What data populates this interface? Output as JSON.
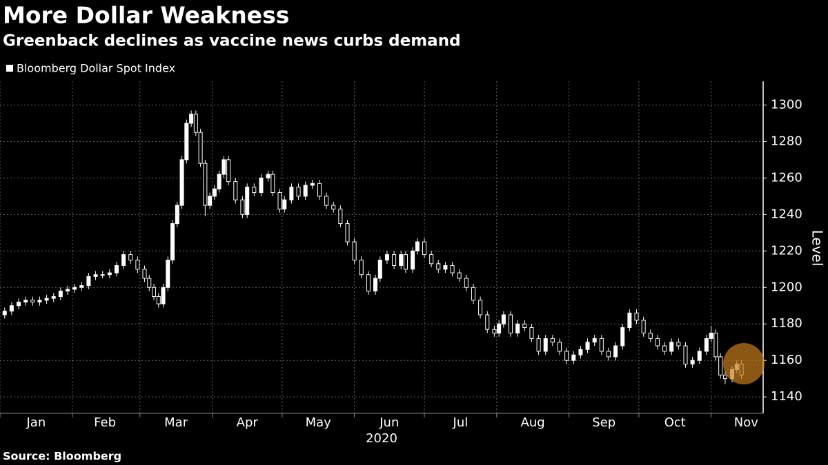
{
  "chart_data": {
    "type": "candlestick",
    "title": "More Dollar Weakness",
    "subtitle": "Greenback declines as vaccine news curbs demand",
    "source": "Source: Bloomberg",
    "x_label": "2020",
    "y_label": "Level",
    "series": [
      {
        "name": "Bloomberg Dollar Spot Index",
        "color": "#ffffff",
        "x": [
          2,
          5,
          8,
          11,
          14,
          17,
          20,
          23,
          26,
          29,
          32,
          35,
          38,
          41,
          44,
          47,
          50,
          53,
          56,
          59,
          62,
          64,
          66,
          68,
          70,
          72,
          74,
          76,
          78,
          80,
          82,
          84,
          86,
          88,
          90,
          92,
          94,
          96,
          98,
          101,
          104,
          106,
          109,
          112,
          115,
          117,
          120,
          122,
          125,
          128,
          131,
          134,
          137,
          140,
          143,
          146,
          149,
          152,
          155,
          158,
          161,
          163,
          166,
          169,
          172,
          174,
          177,
          179,
          182,
          185,
          188,
          191,
          194,
          197,
          200,
          203,
          206,
          209,
          212,
          214,
          216,
          219,
          222,
          225,
          228,
          231,
          234,
          237,
          240,
          243,
          246,
          249,
          252,
          255,
          258,
          261,
          264,
          267,
          270,
          273,
          276,
          279,
          282,
          285,
          288,
          291,
          294,
          297,
          300,
          303,
          305,
          307,
          309,
          311,
          314,
          316,
          318
        ],
        "open": [
          1185,
          1187,
          1190,
          1192,
          1193,
          1192,
          1193,
          1194,
          1195,
          1198,
          1199,
          1200,
          1201,
          1206,
          1207,
          1207,
          1208,
          1212,
          1218,
          1215,
          1210,
          1205,
          1200,
          1195,
          1191,
          1200,
          1215,
          1235,
          1245,
          1270,
          1290,
          1295,
          1285,
          1268,
          1245,
          1250,
          1254,
          1262,
          1270,
          1258,
          1248,
          1240,
          1255,
          1252,
          1260,
          1262,
          1252,
          1243,
          1248,
          1255,
          1250,
          1256,
          1257,
          1250,
          1245,
          1243,
          1235,
          1225,
          1215,
          1207,
          1198,
          1205,
          1215,
          1218,
          1212,
          1218,
          1210,
          1220,
          1225,
          1218,
          1213,
          1210,
          1212,
          1208,
          1205,
          1200,
          1193,
          1185,
          1177,
          1175,
          1180,
          1185,
          1175,
          1180,
          1178,
          1172,
          1165,
          1172,
          1170,
          1165,
          1160,
          1163,
          1166,
          1170,
          1172,
          1165,
          1162,
          1168,
          1178,
          1186,
          1182,
          1175,
          1172,
          1168,
          1165,
          1170,
          1168,
          1158,
          1160,
          1165,
          1172,
          1175,
          1162,
          1152,
          1150,
          1155,
          1158
        ],
        "high": [
          1189,
          1192,
          1194,
          1195,
          1195,
          1195,
          1196,
          1197,
          1200,
          1201,
          1202,
          1203,
          1208,
          1209,
          1209,
          1210,
          1214,
          1220,
          1220,
          1217,
          1212,
          1207,
          1202,
          1197,
          1202,
          1217,
          1237,
          1247,
          1272,
          1292,
          1297,
          1297,
          1287,
          1270,
          1252,
          1256,
          1264,
          1272,
          1272,
          1260,
          1250,
          1257,
          1257,
          1262,
          1264,
          1264,
          1254,
          1250,
          1257,
          1257,
          1258,
          1259,
          1259,
          1252,
          1247,
          1245,
          1237,
          1227,
          1217,
          1209,
          1207,
          1217,
          1220,
          1220,
          1220,
          1220,
          1222,
          1227,
          1227,
          1220,
          1215,
          1214,
          1214,
          1210,
          1207,
          1202,
          1195,
          1187,
          1179,
          1182,
          1187,
          1187,
          1182,
          1182,
          1180,
          1174,
          1174,
          1174,
          1172,
          1167,
          1165,
          1168,
          1172,
          1174,
          1174,
          1167,
          1170,
          1180,
          1188,
          1188,
          1184,
          1177,
          1174,
          1170,
          1172,
          1172,
          1170,
          1162,
          1167,
          1174,
          1179,
          1177,
          1164,
          1154,
          1157,
          1160,
          1160
        ],
        "low": [
          1183,
          1185,
          1188,
          1190,
          1190,
          1190,
          1191,
          1192,
          1193,
          1196,
          1197,
          1198,
          1199,
          1204,
          1205,
          1205,
          1206,
          1210,
          1213,
          1208,
          1203,
          1198,
          1193,
          1189,
          1189,
          1198,
          1213,
          1233,
          1243,
          1268,
          1288,
          1283,
          1266,
          1239,
          1243,
          1248,
          1252,
          1260,
          1256,
          1246,
          1238,
          1238,
          1250,
          1250,
          1258,
          1250,
          1241,
          1241,
          1246,
          1248,
          1248,
          1254,
          1248,
          1243,
          1241,
          1233,
          1223,
          1213,
          1205,
          1196,
          1196,
          1203,
          1213,
          1210,
          1210,
          1208,
          1208,
          1218,
          1216,
          1211,
          1208,
          1208,
          1206,
          1203,
          1198,
          1191,
          1183,
          1175,
          1173,
          1173,
          1178,
          1173,
          1173,
          1176,
          1170,
          1163,
          1163,
          1168,
          1163,
          1158,
          1158,
          1161,
          1164,
          1168,
          1163,
          1160,
          1160,
          1166,
          1176,
          1180,
          1173,
          1170,
          1166,
          1163,
          1163,
          1166,
          1156,
          1156,
          1158,
          1163,
          1170,
          1160,
          1150,
          1147,
          1148,
          1153,
          1150
        ],
        "close": [
          1187,
          1190,
          1192,
          1193,
          1192,
          1193,
          1194,
          1195,
          1198,
          1199,
          1200,
          1201,
          1206,
          1207,
          1207,
          1208,
          1212,
          1218,
          1215,
          1210,
          1205,
          1200,
          1195,
          1191,
          1200,
          1215,
          1235,
          1245,
          1270,
          1290,
          1295,
          1285,
          1268,
          1245,
          1250,
          1254,
          1262,
          1270,
          1258,
          1248,
          1240,
          1255,
          1252,
          1260,
          1262,
          1252,
          1243,
          1248,
          1255,
          1250,
          1256,
          1257,
          1250,
          1245,
          1243,
          1235,
          1225,
          1215,
          1207,
          1198,
          1205,
          1215,
          1218,
          1212,
          1218,
          1210,
          1220,
          1225,
          1218,
          1213,
          1210,
          1212,
          1208,
          1205,
          1200,
          1193,
          1185,
          1177,
          1175,
          1180,
          1185,
          1175,
          1180,
          1178,
          1172,
          1165,
          1172,
          1170,
          1165,
          1160,
          1163,
          1166,
          1170,
          1172,
          1165,
          1162,
          1168,
          1178,
          1186,
          1182,
          1175,
          1172,
          1168,
          1165,
          1170,
          1168,
          1158,
          1160,
          1165,
          1172,
          1175,
          1162,
          1152,
          1150,
          1155,
          1158,
          1152
        ]
      }
    ],
    "xlim": [
      0,
      327
    ],
    "xticks": [
      {
        "value": 15.5,
        "label": "Jan"
      },
      {
        "value": 45,
        "label": "Feb"
      },
      {
        "value": 75.5,
        "label": "Mar"
      },
      {
        "value": 106,
        "label": "Apr"
      },
      {
        "value": 136.5,
        "label": "May"
      },
      {
        "value": 167,
        "label": "Jun"
      },
      {
        "value": 197.5,
        "label": "Jul"
      },
      {
        "value": 228.5,
        "label": "Aug"
      },
      {
        "value": 259,
        "label": "Sep"
      },
      {
        "value": 289.5,
        "label": "Oct"
      },
      {
        "value": 320,
        "label": "Nov"
      }
    ],
    "xgrid": [
      0,
      31,
      60,
      91,
      121,
      152,
      182,
      213,
      244,
      274,
      305
    ],
    "ylim": [
      1131,
      1313
    ],
    "yticks": [
      1140,
      1160,
      1180,
      1200,
      1220,
      1240,
      1260,
      1280,
      1300
    ],
    "grid": true
  }
}
